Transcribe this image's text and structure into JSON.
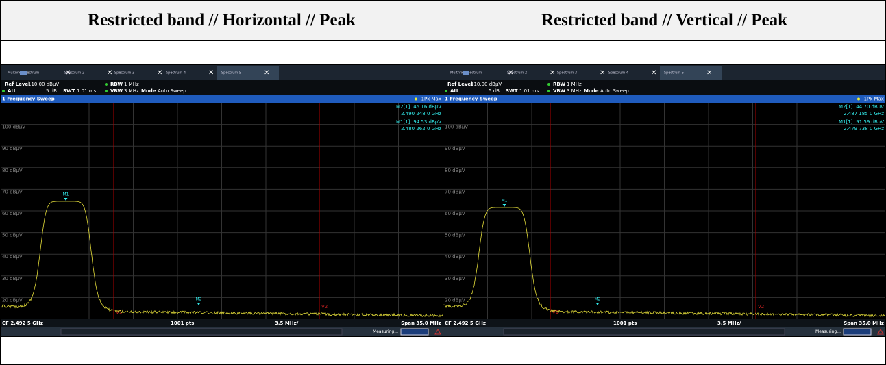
{
  "table": {
    "headers": [
      "Restricted band // Horizontal // Peak",
      "Restricted band // Vertical // Peak"
    ]
  },
  "panels": [
    {
      "tabs": [
        "MultiView",
        "Spectrum",
        "Spectrum 2",
        "Spectrum 3",
        "Spectrum 4",
        "Spectrum 5"
      ],
      "ref_level_label": "Ref Level",
      "ref_level": "110.00 dBµV",
      "rbw_label": "RBW",
      "rbw": "1 MHz",
      "att_label": "Att",
      "att": "5 dB",
      "swt_label": "SWT",
      "swt": "1.01 ms",
      "vbw_label": "VBW",
      "vbw": "3 MHz",
      "mode_label": "Mode",
      "mode": "Auto Sweep",
      "window_title": "1 Frequency Sweep",
      "trace": "1Pk Max",
      "markers": [
        {
          "name": "M2[1]",
          "level": "45.16 dBµV",
          "freq": "2.490 248 0 GHz"
        },
        {
          "name": "M1[1]",
          "level": "94.53 dBµV",
          "freq": "2.480 262 0 GHz"
        }
      ],
      "y_labels": [
        "100 dBµV",
        "90 dBµV",
        "80 dBµV",
        "70 dBµV",
        "60 dBµV",
        "50 dBµV",
        "40 dBµV",
        "30 dBµV",
        "20 dBµV"
      ],
      "marker_tags": [
        "M1",
        "M2"
      ],
      "lines": [
        "V1",
        "V2"
      ],
      "footer": {
        "cf": "CF 2.492 5 GHz",
        "points": "1001 pts",
        "div": "3.5 MHz/",
        "span": "Span 35.0 MHz"
      },
      "status": "Measuring..."
    },
    {
      "tabs": [
        "MultiView",
        "Spectrum",
        "Spectrum 2",
        "Spectrum 3",
        "Spectrum 4",
        "Spectrum 5"
      ],
      "ref_level_label": "Ref Level",
      "ref_level": "110.00 dBµV",
      "rbw_label": "RBW",
      "rbw": "1 MHz",
      "att_label": "Att",
      "att": "5 dB",
      "swt_label": "SWT",
      "swt": "1.01 ms",
      "vbw_label": "VBW",
      "vbw": "3 MHz",
      "mode_label": "Mode",
      "mode": "Auto Sweep",
      "window_title": "1 Frequency Sweep",
      "trace": "1Pk Max",
      "markers": [
        {
          "name": "M2[1]",
          "level": "44.70 dBµV",
          "freq": "2.487 185 0 GHz"
        },
        {
          "name": "M1[1]",
          "level": "91.59 dBµV",
          "freq": "2.479 738 0 GHz"
        }
      ],
      "y_labels": [
        "100 dBµV",
        "90 dBµV",
        "80 dBµV",
        "70 dBµV",
        "60 dBµV",
        "50 dBµV",
        "40 dBµV",
        "30 dBµV",
        "20 dBµV"
      ],
      "marker_tags": [
        "M1",
        "M2"
      ],
      "lines": [
        "V1",
        "V2"
      ],
      "footer": {
        "cf": "CF 2.492 5 GHz",
        "points": "1001 pts",
        "div": "3.5 MHz/",
        "span": "Span 35.0 MHz"
      },
      "status": "Measuring..."
    }
  ]
}
